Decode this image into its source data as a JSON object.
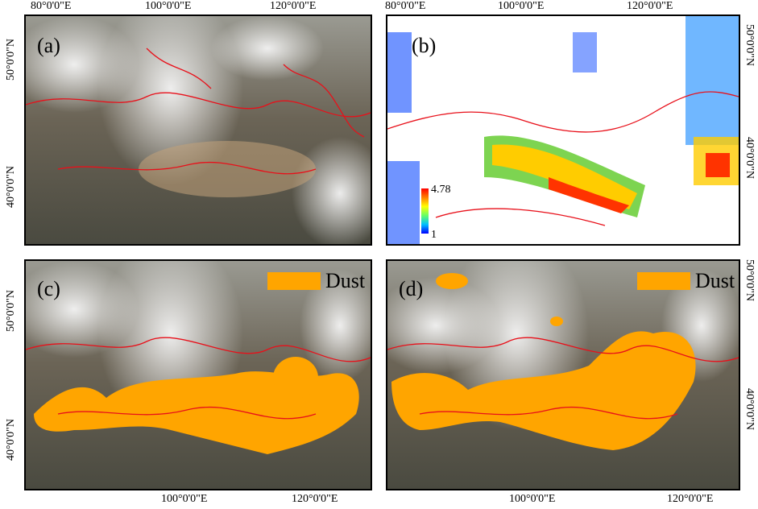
{
  "colors": {
    "dust": "#ffa500",
    "borders": "#e8101a",
    "aod_scale": [
      "#0000ff",
      "#00bfff",
      "#66ff66",
      "#ffff00",
      "#ff8000",
      "#ff0000"
    ]
  },
  "top_axis": {
    "left_panel": [
      "80°0'0\"E",
      "100°0'0\"E",
      "120°0'0\"E"
    ],
    "right_panel": [
      "80°0'0\"E",
      "100°0'0\"E",
      "120°0'0\"E"
    ]
  },
  "bottom_axis": {
    "left_panel": [
      "100°0'0\"E",
      "120°0'0\"E"
    ],
    "right_panel": [
      "100°0'0\"E",
      "120°0'0\"E"
    ]
  },
  "left_axis": {
    "top_panel": [
      "50°0'0\"N",
      "40°0'0\"N"
    ],
    "bottom_panel": [
      "50°0'0\"N",
      "40°0'0\"N"
    ]
  },
  "right_axis": {
    "top_panel": [
      "50°0'0\"N",
      "40°0'0\"N"
    ],
    "bottom_panel": [
      "50°0'0\"N",
      "40°0'0\"N"
    ]
  },
  "panels": {
    "a": {
      "label": "(a)"
    },
    "b": {
      "label": "(b)",
      "colorbar": {
        "max": "4.78",
        "min": "1"
      }
    },
    "c": {
      "label": "(c)",
      "legend": "Dust"
    },
    "d": {
      "label": "(d)",
      "legend": "Dust"
    }
  }
}
